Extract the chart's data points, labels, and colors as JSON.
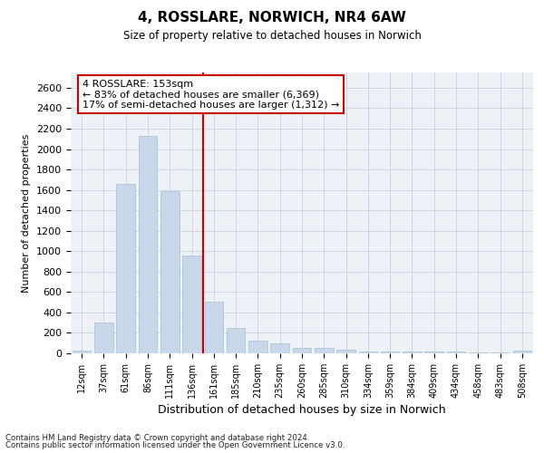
{
  "title": "4, ROSSLARE, NORWICH, NR4 6AW",
  "subtitle": "Size of property relative to detached houses in Norwich",
  "xlabel": "Distribution of detached houses by size in Norwich",
  "ylabel": "Number of detached properties",
  "bar_color": "#c8d8ea",
  "bar_edge_color": "#a8c0d4",
  "categories": [
    "12sqm",
    "37sqm",
    "61sqm",
    "86sqm",
    "111sqm",
    "136sqm",
    "161sqm",
    "185sqm",
    "210sqm",
    "235sqm",
    "260sqm",
    "285sqm",
    "310sqm",
    "334sqm",
    "359sqm",
    "384sqm",
    "409sqm",
    "434sqm",
    "458sqm",
    "483sqm",
    "508sqm"
  ],
  "values": [
    25,
    300,
    1660,
    2130,
    1590,
    955,
    505,
    250,
    125,
    100,
    50,
    50,
    35,
    20,
    20,
    18,
    18,
    15,
    5,
    5,
    25
  ],
  "ylim": [
    0,
    2750
  ],
  "yticks": [
    0,
    200,
    400,
    600,
    800,
    1000,
    1200,
    1400,
    1600,
    1800,
    2000,
    2200,
    2400,
    2600
  ],
  "vline_position": 6.0,
  "vline_color": "#cc0000",
  "annotation_line1": "4 ROSSLARE: 153sqm",
  "annotation_line2": "← 83% of detached houses are smaller (6,369)",
  "annotation_line3": "17% of semi-detached houses are larger (1,312) →",
  "annotation_box_color": "#ffffff",
  "annotation_box_edge": "#cc0000",
  "footer_line1": "Contains HM Land Registry data © Crown copyright and database right 2024.",
  "footer_line2": "Contains public sector information licensed under the Open Government Licence v3.0.",
  "bg_color": "#eef2f7",
  "grid_color": "#c8d4e0"
}
